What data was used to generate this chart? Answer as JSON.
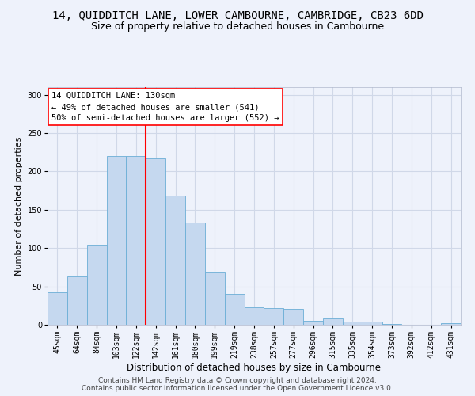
{
  "title": "14, QUIDDITCH LANE, LOWER CAMBOURNE, CAMBRIDGE, CB23 6DD",
  "subtitle": "Size of property relative to detached houses in Cambourne",
  "xlabel": "Distribution of detached houses by size in Cambourne",
  "ylabel": "Number of detached properties",
  "categories": [
    "45sqm",
    "64sqm",
    "84sqm",
    "103sqm",
    "122sqm",
    "142sqm",
    "161sqm",
    "180sqm",
    "199sqm",
    "219sqm",
    "238sqm",
    "257sqm",
    "277sqm",
    "296sqm",
    "315sqm",
    "335sqm",
    "354sqm",
    "373sqm",
    "392sqm",
    "412sqm",
    "431sqm"
  ],
  "values": [
    42,
    63,
    104,
    220,
    220,
    217,
    168,
    133,
    68,
    40,
    23,
    22,
    21,
    5,
    8,
    4,
    4,
    1,
    0,
    0,
    2
  ],
  "bar_color": "#c5d8ef",
  "bar_edge_color": "#6baed6",
  "vline_x": 4.5,
  "vline_color": "red",
  "annotation_text": "14 QUIDDITCH LANE: 130sqm\n← 49% of detached houses are smaller (541)\n50% of semi-detached houses are larger (552) →",
  "annotation_box_color": "white",
  "annotation_box_edge": "red",
  "ylim": [
    0,
    310
  ],
  "yticks": [
    0,
    50,
    100,
    150,
    200,
    250,
    300
  ],
  "footer1": "Contains HM Land Registry data © Crown copyright and database right 2024.",
  "footer2": "Contains public sector information licensed under the Open Government Licence v3.0.",
  "background_color": "#eef2fb",
  "grid_color": "#d0d8e8",
  "title_fontsize": 10,
  "subtitle_fontsize": 9,
  "xlabel_fontsize": 8.5,
  "ylabel_fontsize": 8,
  "tick_fontsize": 7,
  "footer_fontsize": 6.5,
  "annotation_fontsize": 7.5
}
